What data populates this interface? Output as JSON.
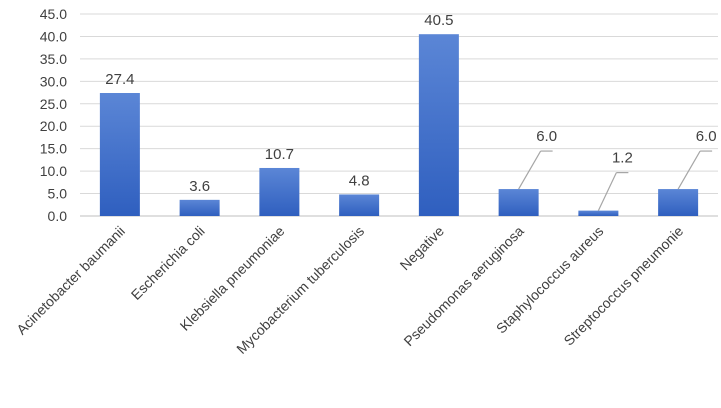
{
  "chart_data": {
    "type": "bar",
    "title": "",
    "xlabel": "",
    "ylabel": "",
    "categories": [
      "Acinetobacter baumanii",
      "Escherichia coli",
      "Klebsiella pneumoniae",
      "Mycobacterium tuberculosis",
      "Negative",
      "Pseudomonas aeruginosa",
      "Staphylococcus aureus",
      "Streptococcus pneumonie"
    ],
    "values": [
      27.4,
      3.6,
      10.7,
      4.8,
      40.5,
      6.0,
      1.2,
      6.0
    ],
    "data_labels": [
      "27.4",
      "3.6",
      "10.7",
      "4.8",
      "40.5",
      "6.0",
      "1.2",
      "6.0"
    ],
    "ylim": [
      0,
      45
    ],
    "yticks": [
      "0.0",
      "5.0",
      "10.0",
      "15.0",
      "20.0",
      "25.0",
      "30.0",
      "35.0",
      "40.0",
      "45.0"
    ],
    "grid": true,
    "legend": "none",
    "colors": {
      "bar_top": "#5b86d6",
      "bar_bottom": "#2f5fbf",
      "grid": "#d9d9d9",
      "text": "#404040"
    }
  }
}
